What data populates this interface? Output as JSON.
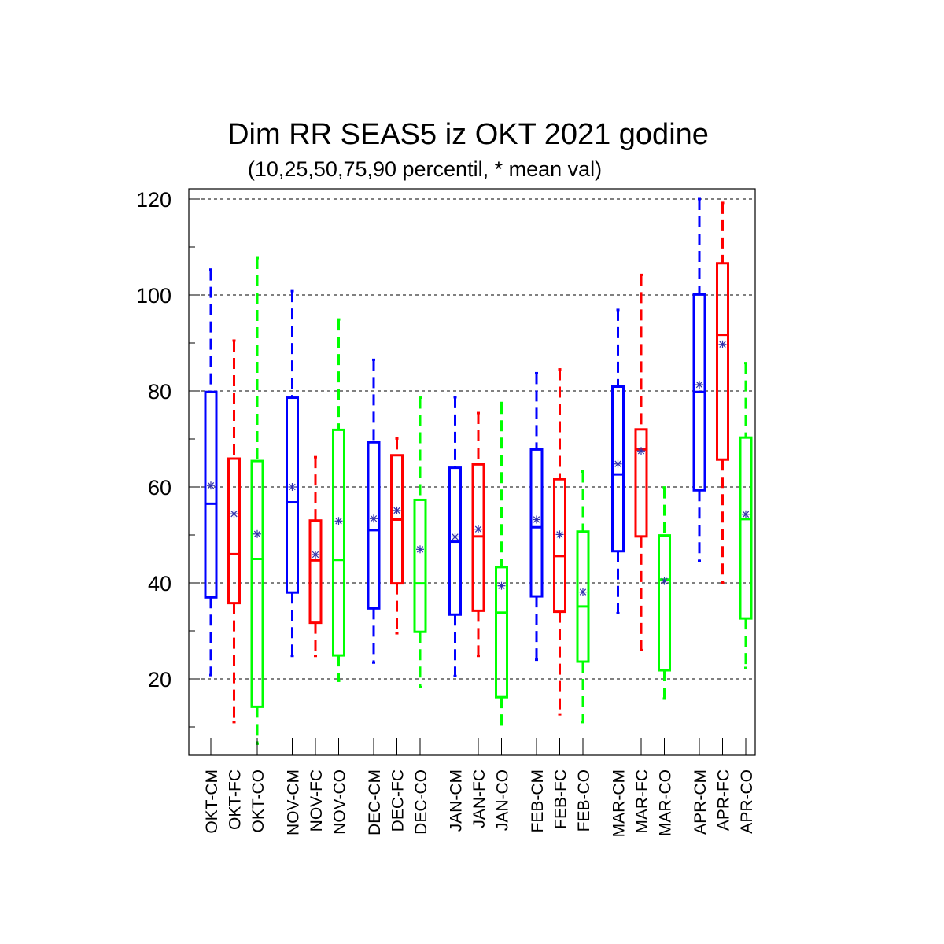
{
  "chart_data": {
    "type": "box",
    "title": "Dim RR SEAS5 iz OKT 2021 godine",
    "subtitle": "(10,25,50,75,90 percentil, * mean val)",
    "ylim": [
      5,
      122
    ],
    "yticks": [
      20,
      40,
      60,
      80,
      100,
      120
    ],
    "grid": "horizontal dashed at major ticks",
    "colors": {
      "CM": "#0000ff",
      "FC": "#ff0000",
      "CO": "#00ff00",
      "mean_marker": "#3333aa"
    },
    "groups": [
      "OKT",
      "NOV",
      "DEC",
      "JAN",
      "FEB",
      "MAR",
      "APR"
    ],
    "categories": [
      {
        "label": "OKT-CM",
        "series": "CM",
        "p10": 20.8,
        "p25": 37.0,
        "p50": 56.5,
        "p75": 79.8,
        "p90": 105.3,
        "mean": 60.3
      },
      {
        "label": "OKT-FC",
        "series": "FC",
        "p10": 11.0,
        "p25": 35.8,
        "p50": 46.0,
        "p75": 65.9,
        "p90": 90.5,
        "mean": 54.4
      },
      {
        "label": "OKT-CO",
        "series": "CO",
        "p10": 6.5,
        "p25": 14.2,
        "p50": 45.0,
        "p75": 65.4,
        "p90": 107.7,
        "mean": 50.2
      },
      {
        "label": "NOV-CM",
        "series": "CM",
        "p10": 24.8,
        "p25": 38.0,
        "p50": 56.8,
        "p75": 78.6,
        "p90": 100.8,
        "mean": 60.0
      },
      {
        "label": "NOV-FC",
        "series": "FC",
        "p10": 24.8,
        "p25": 31.7,
        "p50": 44.7,
        "p75": 53.0,
        "p90": 66.2,
        "mean": 45.9
      },
      {
        "label": "NOV-CO",
        "series": "CO",
        "p10": 19.6,
        "p25": 24.9,
        "p50": 44.8,
        "p75": 71.9,
        "p90": 94.9,
        "mean": 52.9
      },
      {
        "label": "DEC-CM",
        "series": "CM",
        "p10": 23.4,
        "p25": 34.7,
        "p50": 51.0,
        "p75": 69.3,
        "p90": 86.5,
        "mean": 53.4
      },
      {
        "label": "DEC-FC",
        "series": "FC",
        "p10": 29.5,
        "p25": 39.9,
        "p50": 53.2,
        "p75": 66.6,
        "p90": 70.1,
        "mean": 55.1
      },
      {
        "label": "DEC-CO",
        "series": "CO",
        "p10": 18.3,
        "p25": 29.8,
        "p50": 39.9,
        "p75": 57.3,
        "p90": 78.6,
        "mean": 47.0
      },
      {
        "label": "JAN-CM",
        "series": "CM",
        "p10": 20.6,
        "p25": 33.4,
        "p50": 48.6,
        "p75": 64.0,
        "p90": 78.7,
        "mean": 49.6
      },
      {
        "label": "JAN-FC",
        "series": "FC",
        "p10": 24.8,
        "p25": 34.2,
        "p50": 49.7,
        "p75": 64.7,
        "p90": 75.4,
        "mean": 51.2
      },
      {
        "label": "JAN-CO",
        "series": "CO",
        "p10": 10.5,
        "p25": 16.2,
        "p50": 33.8,
        "p75": 43.3,
        "p90": 77.5,
        "mean": 39.4
      },
      {
        "label": "FEB-CM",
        "series": "CM",
        "p10": 24.0,
        "p25": 37.2,
        "p50": 51.6,
        "p75": 67.8,
        "p90": 83.7,
        "mean": 53.2
      },
      {
        "label": "FEB-FC",
        "series": "FC",
        "p10": 12.6,
        "p25": 34.0,
        "p50": 45.6,
        "p75": 61.6,
        "p90": 84.5,
        "mean": 50.1
      },
      {
        "label": "FEB-CO",
        "series": "CO",
        "p10": 11.0,
        "p25": 23.6,
        "p50": 35.1,
        "p75": 50.7,
        "p90": 63.2,
        "mean": 38.1
      },
      {
        "label": "MAR-CM",
        "series": "CM",
        "p10": 33.7,
        "p25": 46.6,
        "p50": 62.6,
        "p75": 80.9,
        "p90": 96.9,
        "mean": 64.8
      },
      {
        "label": "MAR-FC",
        "series": "FC",
        "p10": 26.0,
        "p25": 49.7,
        "p50": 67.8,
        "p75": 72.0,
        "p90": 104.2,
        "mean": 67.5
      },
      {
        "label": "MAR-CO",
        "series": "CO",
        "p10": 15.9,
        "p25": 21.8,
        "p50": 40.7,
        "p75": 49.9,
        "p90": 59.9,
        "mean": 40.4
      },
      {
        "label": "APR-CM",
        "series": "CM",
        "p10": 44.6,
        "p25": 59.3,
        "p50": 79.8,
        "p75": 100.1,
        "p90": 120.0,
        "mean": 81.3
      },
      {
        "label": "APR-FC",
        "series": "FC",
        "p10": 40.0,
        "p25": 65.7,
        "p50": 91.7,
        "p75": 106.6,
        "p90": 119.2,
        "mean": 89.7
      },
      {
        "label": "APR-CO",
        "series": "CO",
        "p10": 22.3,
        "p25": 32.6,
        "p50": 53.3,
        "p75": 70.3,
        "p90": 85.8,
        "mean": 54.3
      }
    ]
  }
}
